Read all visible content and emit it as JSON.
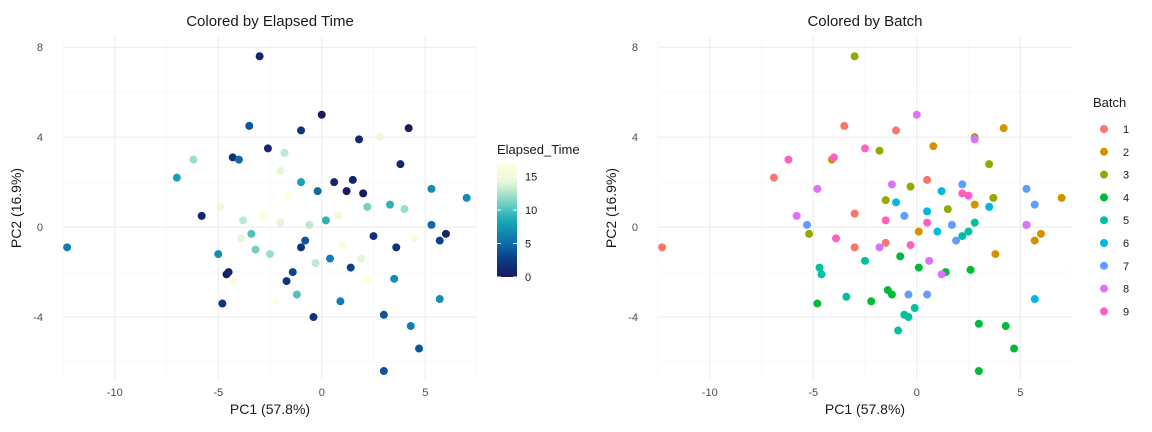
{
  "chart_data": [
    {
      "type": "scatter",
      "title": "Colored by Elapsed Time",
      "xlabel": "PC1 (57.8%)",
      "ylabel": "PC2 (16.9%)",
      "xlim": [
        -12.5,
        7.5
      ],
      "ylim": [
        -6.8,
        8.5
      ],
      "x_ticks": [
        -10,
        -5,
        0,
        5
      ],
      "y_ticks": [
        -4,
        0,
        4,
        8
      ],
      "grid": true,
      "legend": {
        "title": "Elapsed_Time",
        "kind": "colorbar",
        "placement": "right",
        "range": [
          0,
          17
        ],
        "ticks": [
          0,
          5,
          10,
          15
        ],
        "colors": [
          "#1a1a5e",
          "#0a3f8a",
          "#0f78b0",
          "#1aa9b6",
          "#7fd6c5",
          "#eaf7d9",
          "#ffffe0"
        ]
      },
      "points": [
        {
          "x": -12.3,
          "y": -0.9,
          "v": 6
        },
        {
          "x": -7.0,
          "y": 2.2,
          "v": 8
        },
        {
          "x": -6.2,
          "y": 3.0,
          "v": 12
        },
        {
          "x": -5.8,
          "y": 0.5,
          "v": 1
        },
        {
          "x": -5.0,
          "y": -1.2,
          "v": 7
        },
        {
          "x": -4.8,
          "y": -3.4,
          "v": 2
        },
        {
          "x": -4.6,
          "y": -2.1,
          "v": 0
        },
        {
          "x": -4.5,
          "y": -2.0,
          "v": 1
        },
        {
          "x": -4.3,
          "y": -2.4,
          "v": 16
        },
        {
          "x": -3.9,
          "y": -0.5,
          "v": 14
        },
        {
          "x": -3.5,
          "y": 4.5,
          "v": 4
        },
        {
          "x": -3.2,
          "y": -1.0,
          "v": 11
        },
        {
          "x": -3.0,
          "y": 7.6,
          "v": 1
        },
        {
          "x": -2.8,
          "y": 0.5,
          "v": 17
        },
        {
          "x": -2.6,
          "y": 3.5,
          "v": 1
        },
        {
          "x": -2.5,
          "y": -1.2,
          "v": 12
        },
        {
          "x": -2.2,
          "y": -3.3,
          "v": 17
        },
        {
          "x": -2.0,
          "y": 0.2,
          "v": 14
        },
        {
          "x": -1.8,
          "y": 3.3,
          "v": 13
        },
        {
          "x": -1.6,
          "y": 1.4,
          "v": 17
        },
        {
          "x": -1.4,
          "y": -2.0,
          "v": 3
        },
        {
          "x": -1.2,
          "y": -3.0,
          "v": 10
        },
        {
          "x": -1.0,
          "y": 4.3,
          "v": 2
        },
        {
          "x": -1.0,
          "y": 2.0,
          "v": 8
        },
        {
          "x": -0.8,
          "y": -0.6,
          "v": 4
        },
        {
          "x": -0.6,
          "y": 0.1,
          "v": 13
        },
        {
          "x": -0.4,
          "y": -4.0,
          "v": 2
        },
        {
          "x": -0.2,
          "y": 1.6,
          "v": 5
        },
        {
          "x": 0.0,
          "y": 5.0,
          "v": 0
        },
        {
          "x": 0.2,
          "y": 0.3,
          "v": 9
        },
        {
          "x": 0.4,
          "y": -1.4,
          "v": 6
        },
        {
          "x": 0.6,
          "y": 2.0,
          "v": 1
        },
        {
          "x": 0.8,
          "y": 0.5,
          "v": 15
        },
        {
          "x": 1.0,
          "y": -0.8,
          "v": 16
        },
        {
          "x": 1.2,
          "y": 1.6,
          "v": 0
        },
        {
          "x": 1.4,
          "y": -1.8,
          "v": 3
        },
        {
          "x": 1.8,
          "y": 3.9,
          "v": 1
        },
        {
          "x": 2.0,
          "y": 1.5,
          "v": 0
        },
        {
          "x": 2.2,
          "y": 0.9,
          "v": 11
        },
        {
          "x": 2.5,
          "y": -0.4,
          "v": 2
        },
        {
          "x": 2.8,
          "y": 4.0,
          "v": 15
        },
        {
          "x": 3.0,
          "y": -3.9,
          "v": 4
        },
        {
          "x": 3.0,
          "y": -6.4,
          "v": 4
        },
        {
          "x": 3.3,
          "y": 1.0,
          "v": 9
        },
        {
          "x": 3.5,
          "y": -2.3,
          "v": 7
        },
        {
          "x": 3.8,
          "y": 2.8,
          "v": 1
        },
        {
          "x": 4.0,
          "y": 0.8,
          "v": 12
        },
        {
          "x": 4.2,
          "y": 4.4,
          "v": 0
        },
        {
          "x": 4.3,
          "y": -4.4,
          "v": 6
        },
        {
          "x": 4.5,
          "y": -0.5,
          "v": 16
        },
        {
          "x": 4.7,
          "y": -5.4,
          "v": 4
        },
        {
          "x": 5.3,
          "y": 1.7,
          "v": 7
        },
        {
          "x": 5.3,
          "y": 0.1,
          "v": 5
        },
        {
          "x": 5.7,
          "y": -3.2,
          "v": 7
        },
        {
          "x": 5.7,
          "y": -0.6,
          "v": 3
        },
        {
          "x": 6.0,
          "y": -0.3,
          "v": 1
        },
        {
          "x": 7.0,
          "y": 1.3,
          "v": 7
        },
        {
          "x": -4.3,
          "y": 3.1,
          "v": 2
        },
        {
          "x": -4.0,
          "y": 3.0,
          "v": 5
        },
        {
          "x": -4.9,
          "y": 0.9,
          "v": 15
        },
        {
          "x": -3.8,
          "y": 0.3,
          "v": 13
        },
        {
          "x": -3.4,
          "y": -0.3,
          "v": 10
        },
        {
          "x": -2.0,
          "y": 2.5,
          "v": 14
        },
        {
          "x": -1.0,
          "y": -0.9,
          "v": 2
        },
        {
          "x": 1.5,
          "y": 2.1,
          "v": 1
        },
        {
          "x": 0.9,
          "y": -3.3,
          "v": 6
        },
        {
          "x": 2.2,
          "y": -2.3,
          "v": 17
        },
        {
          "x": 3.6,
          "y": -0.9,
          "v": 2
        },
        {
          "x": -0.3,
          "y": -1.6,
          "v": 13
        },
        {
          "x": 1.9,
          "y": -1.4,
          "v": 14
        },
        {
          "x": -1.7,
          "y": -2.4,
          "v": 2
        }
      ]
    },
    {
      "type": "scatter",
      "title": "Colored by Batch",
      "xlabel": "PC1 (57.8%)",
      "ylabel": "PC2 (16.9%)",
      "xlim": [
        -12.5,
        7.5
      ],
      "ylim": [
        -6.8,
        8.5
      ],
      "x_ticks": [
        -10,
        -5,
        0,
        5
      ],
      "y_ticks": [
        -4,
        0,
        4,
        8
      ],
      "grid": true,
      "legend": {
        "title": "Batch",
        "kind": "discrete",
        "placement": "right",
        "entries": [
          {
            "label": "1",
            "color": "#F8766D"
          },
          {
            "label": "2",
            "color": "#D39200"
          },
          {
            "label": "3",
            "color": "#93AA00"
          },
          {
            "label": "4",
            "color": "#00BA38"
          },
          {
            "label": "5",
            "color": "#00C19F"
          },
          {
            "label": "6",
            "color": "#00B9E3"
          },
          {
            "label": "7",
            "color": "#619CFF"
          },
          {
            "label": "8",
            "color": "#DB72FB"
          },
          {
            "label": "9",
            "color": "#FF61C3"
          }
        ]
      },
      "points": [
        {
          "x": -12.3,
          "y": -0.9,
          "b": 1
        },
        {
          "x": -6.9,
          "y": 2.2,
          "b": 1
        },
        {
          "x": -3.5,
          "y": 4.5,
          "b": 1
        },
        {
          "x": -1.0,
          "y": 4.3,
          "b": 1
        },
        {
          "x": 0.5,
          "y": 2.1,
          "b": 1
        },
        {
          "x": -3.0,
          "y": 0.6,
          "b": 1
        },
        {
          "x": -1.5,
          "y": -0.7,
          "b": 1
        },
        {
          "x": -3.0,
          "y": -0.9,
          "b": 1
        },
        {
          "x": 7.0,
          "y": 1.3,
          "b": 2
        },
        {
          "x": 4.2,
          "y": 4.4,
          "b": 2
        },
        {
          "x": 5.7,
          "y": -0.6,
          "b": 2
        },
        {
          "x": 6.0,
          "y": -0.3,
          "b": 2
        },
        {
          "x": 3.8,
          "y": -1.2,
          "b": 2
        },
        {
          "x": 0.8,
          "y": 3.6,
          "b": 2
        },
        {
          "x": 2.8,
          "y": 1.0,
          "b": 2
        },
        {
          "x": 0.1,
          "y": -0.2,
          "b": 2
        },
        {
          "x": -4.1,
          "y": 3.0,
          "b": 2
        },
        {
          "x": -3.0,
          "y": 7.6,
          "b": 3
        },
        {
          "x": -5.2,
          "y": -0.3,
          "b": 3
        },
        {
          "x": -1.8,
          "y": 3.4,
          "b": 3
        },
        {
          "x": -1.5,
          "y": 1.2,
          "b": 3
        },
        {
          "x": 1.5,
          "y": 0.8,
          "b": 3
        },
        {
          "x": 3.5,
          "y": 2.8,
          "b": 3
        },
        {
          "x": 2.8,
          "y": 4.0,
          "b": 3
        },
        {
          "x": 3.7,
          "y": 1.3,
          "b": 3
        },
        {
          "x": -0.3,
          "y": 1.8,
          "b": 3
        },
        {
          "x": -4.8,
          "y": -3.4,
          "b": 4
        },
        {
          "x": -2.2,
          "y": -3.3,
          "b": 4
        },
        {
          "x": -1.2,
          "y": -3.0,
          "b": 4
        },
        {
          "x": -1.4,
          "y": -2.8,
          "b": 4
        },
        {
          "x": 0.1,
          "y": -1.8,
          "b": 4
        },
        {
          "x": 1.4,
          "y": -2.0,
          "b": 4
        },
        {
          "x": 3.0,
          "y": -4.3,
          "b": 4
        },
        {
          "x": 3.0,
          "y": -6.4,
          "b": 4
        },
        {
          "x": 4.3,
          "y": -4.4,
          "b": 4
        },
        {
          "x": 4.7,
          "y": -5.4,
          "b": 4
        },
        {
          "x": 2.6,
          "y": -1.9,
          "b": 4
        },
        {
          "x": -0.8,
          "y": -1.3,
          "b": 4
        },
        {
          "x": -4.6,
          "y": -2.1,
          "b": 5
        },
        {
          "x": -4.7,
          "y": -1.8,
          "b": 5
        },
        {
          "x": -3.4,
          "y": -3.1,
          "b": 5
        },
        {
          "x": -0.9,
          "y": -4.6,
          "b": 5
        },
        {
          "x": -0.4,
          "y": -4.0,
          "b": 5
        },
        {
          "x": -0.1,
          "y": -3.6,
          "b": 5
        },
        {
          "x": 2.2,
          "y": -0.4,
          "b": 5
        },
        {
          "x": 2.5,
          "y": -0.2,
          "b": 5
        },
        {
          "x": -2.5,
          "y": -1.5,
          "b": 5
        },
        {
          "x": -0.6,
          "y": -3.9,
          "b": 5
        },
        {
          "x": 2.8,
          "y": 0.2,
          "b": 5
        },
        {
          "x": 1.2,
          "y": 1.6,
          "b": 6
        },
        {
          "x": -1.0,
          "y": 1.1,
          "b": 6
        },
        {
          "x": 5.3,
          "y": 0.1,
          "b": 6
        },
        {
          "x": 5.7,
          "y": -3.2,
          "b": 6
        },
        {
          "x": 3.5,
          "y": 0.9,
          "b": 6
        },
        {
          "x": 1.0,
          "y": -0.2,
          "b": 6
        },
        {
          "x": 0.5,
          "y": 0.7,
          "b": 6
        },
        {
          "x": -5.3,
          "y": 0.1,
          "b": 7
        },
        {
          "x": 5.3,
          "y": 1.7,
          "b": 7
        },
        {
          "x": 5.7,
          "y": 1.0,
          "b": 7
        },
        {
          "x": 2.2,
          "y": 1.9,
          "b": 7
        },
        {
          "x": 1.9,
          "y": -0.6,
          "b": 7
        },
        {
          "x": -0.4,
          "y": -3.0,
          "b": 7
        },
        {
          "x": 0.5,
          "y": -3.0,
          "b": 7
        },
        {
          "x": -0.6,
          "y": 0.5,
          "b": 7
        },
        {
          "x": 1.7,
          "y": 0.1,
          "b": 7
        },
        {
          "x": 0.0,
          "y": 5.0,
          "b": 8
        },
        {
          "x": 2.8,
          "y": 3.9,
          "b": 8
        },
        {
          "x": -5.8,
          "y": 0.5,
          "b": 8
        },
        {
          "x": -4.8,
          "y": 1.7,
          "b": 8
        },
        {
          "x": -1.2,
          "y": 1.9,
          "b": 8
        },
        {
          "x": 5.3,
          "y": 0.1,
          "b": 8
        },
        {
          "x": 0.6,
          "y": -1.5,
          "b": 8
        },
        {
          "x": -1.8,
          "y": -0.9,
          "b": 8
        },
        {
          "x": 1.2,
          "y": -2.1,
          "b": 8
        },
        {
          "x": -6.2,
          "y": 3.0,
          "b": 9
        },
        {
          "x": -4.0,
          "y": 3.1,
          "b": 9
        },
        {
          "x": -2.5,
          "y": 3.5,
          "b": 9
        },
        {
          "x": -3.9,
          "y": -0.5,
          "b": 9
        },
        {
          "x": -1.5,
          "y": 0.3,
          "b": 9
        },
        {
          "x": 0.5,
          "y": 0.2,
          "b": 9
        },
        {
          "x": 2.2,
          "y": 1.5,
          "b": 9
        },
        {
          "x": -0.3,
          "y": -0.8,
          "b": 9
        },
        {
          "x": 2.5,
          "y": 1.4,
          "b": 9
        }
      ]
    }
  ]
}
